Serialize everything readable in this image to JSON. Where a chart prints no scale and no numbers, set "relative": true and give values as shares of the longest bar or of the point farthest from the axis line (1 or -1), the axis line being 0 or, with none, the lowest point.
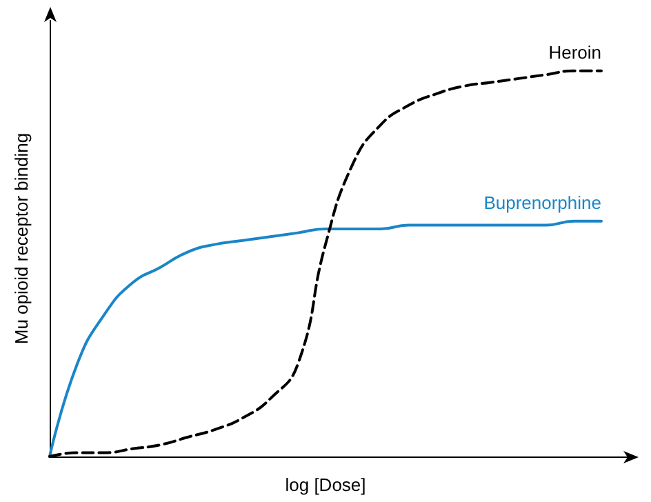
{
  "chart_data": {
    "type": "line",
    "relative": true,
    "xlabel": "log [Dose]",
    "ylabel": "Mu opioid receptor binding",
    "categories": [
      null,
      null,
      null,
      null,
      null,
      null,
      null,
      null,
      null,
      null,
      null,
      null,
      null,
      null,
      null,
      null,
      null,
      null,
      null,
      null,
      null
    ],
    "grid": false,
    "legend": false,
    "marker": "none",
    "series": [
      {
        "name": "Heroin",
        "color": "#000000",
        "line_style": "dashed",
        "values": [
          0,
          0.01,
          0.01,
          0.02,
          0.03,
          0.05,
          0.07,
          0.1,
          0.15,
          0.24,
          0.55,
          0.76,
          0.86,
          0.91,
          0.94,
          0.96,
          0.97,
          0.98,
          0.99,
          1.0,
          1.0
        ]
      },
      {
        "name": "Buprenorphine",
        "color": "#1a86c8",
        "line_style": "solid",
        "values": [
          0,
          0.24,
          0.37,
          0.45,
          0.49,
          0.53,
          0.55,
          0.56,
          0.57,
          0.58,
          0.59,
          0.59,
          0.59,
          0.6,
          0.6,
          0.6,
          0.6,
          0.6,
          0.6,
          0.61,
          0.61
        ]
      }
    ]
  }
}
